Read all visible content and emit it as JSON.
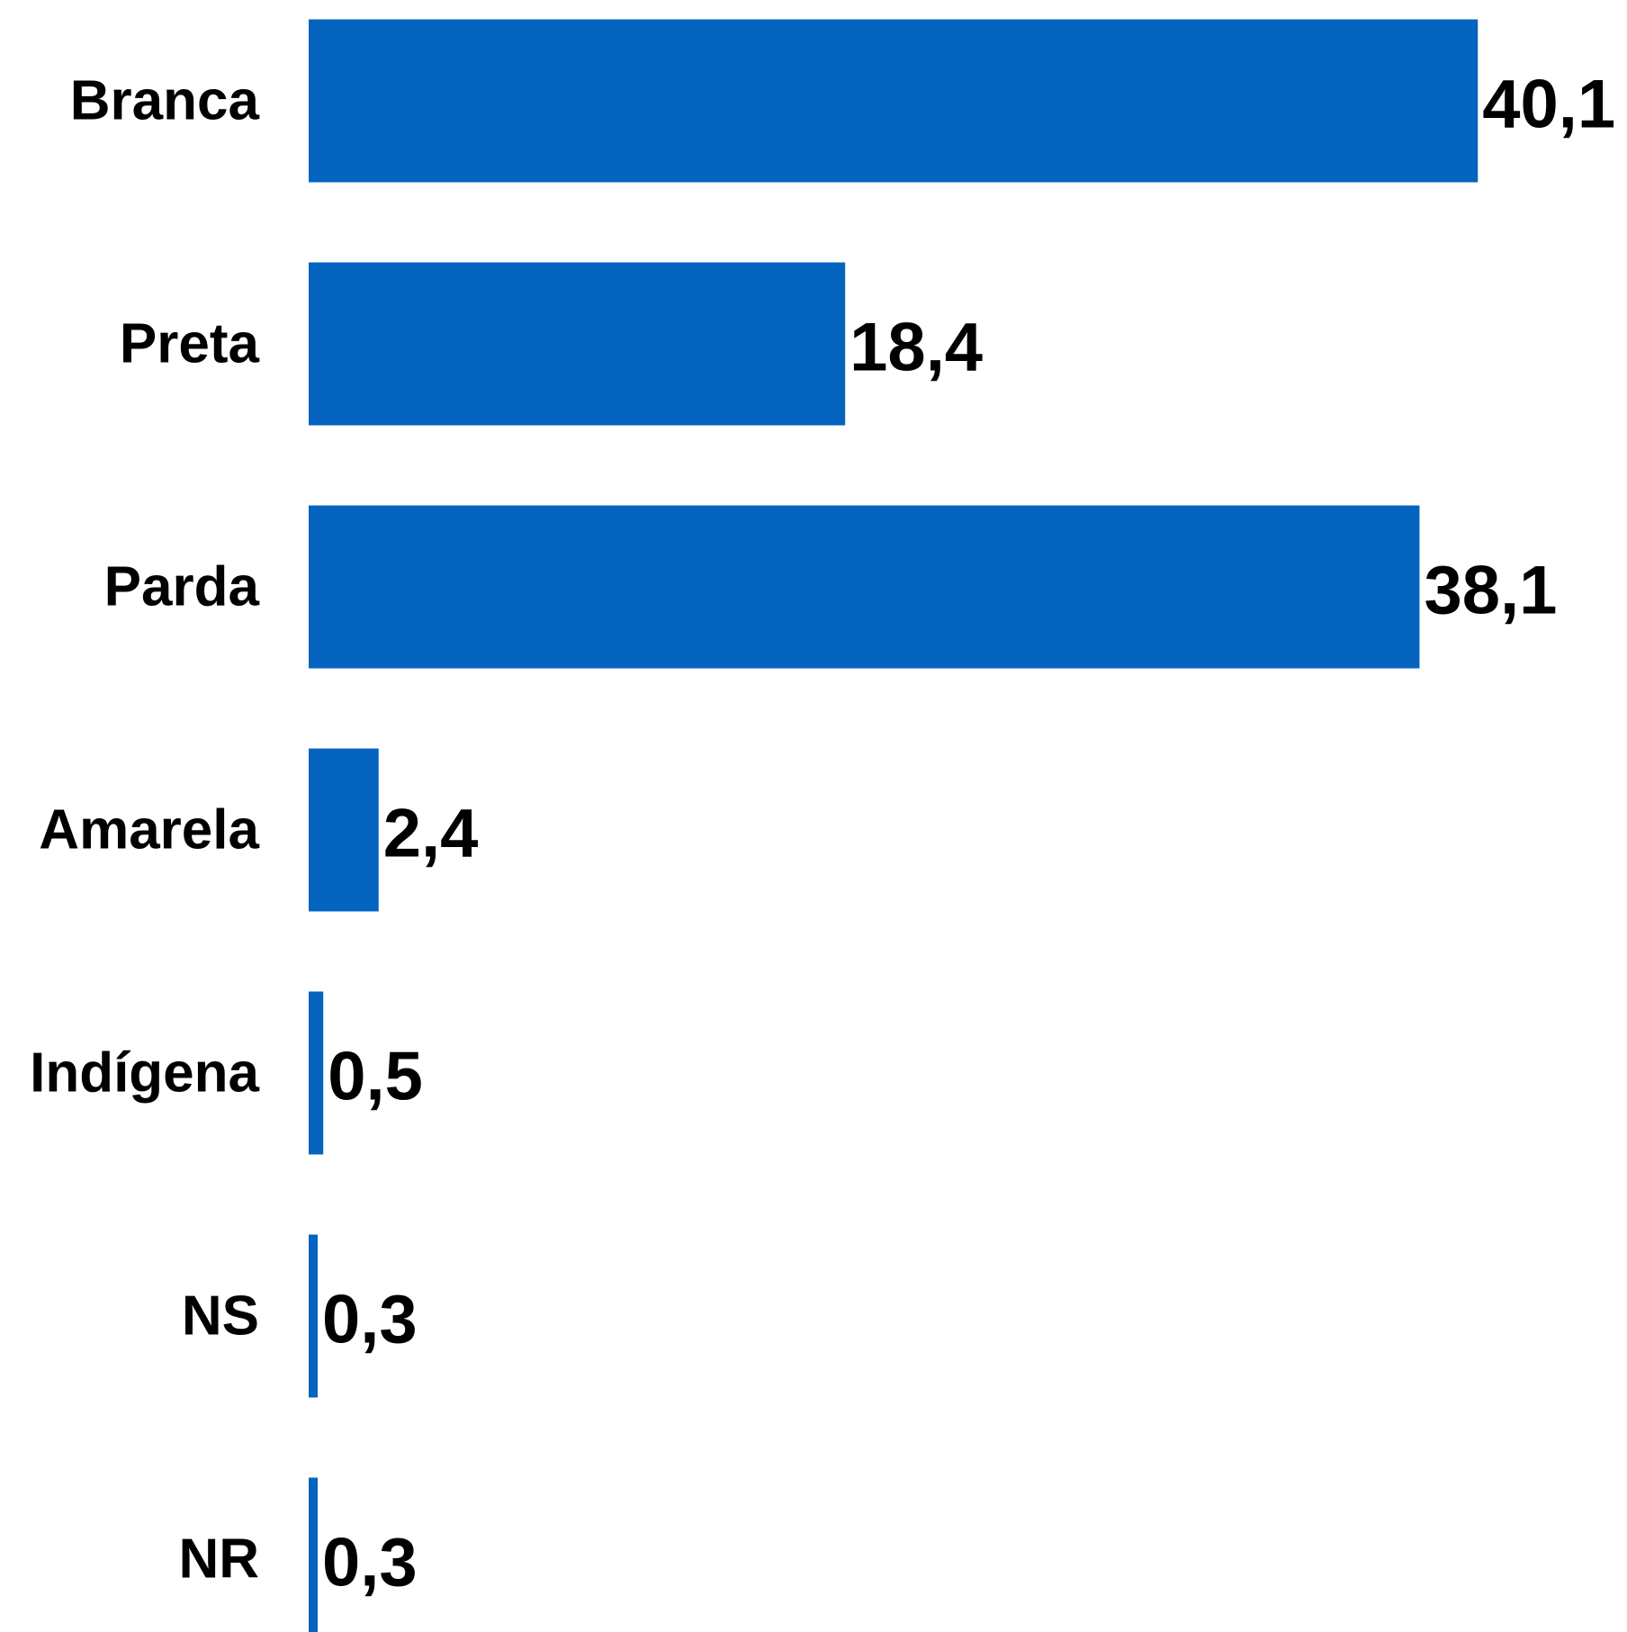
{
  "chart_data": {
    "type": "bar",
    "orientation": "horizontal",
    "categories": [
      "Branca",
      "Preta",
      "Parda",
      "Amarela",
      "Indígena",
      "NS",
      "NR"
    ],
    "values": [
      40.1,
      18.4,
      38.1,
      2.4,
      0.5,
      0.3,
      0.3
    ],
    "value_labels": [
      "40,1",
      "18,4",
      "38,1",
      "2,4",
      "0,5",
      "0,3",
      "0,3"
    ],
    "title": "",
    "xlabel": "",
    "ylabel": "",
    "grid": false,
    "legend": "none",
    "bar_color": "#0564bf"
  }
}
